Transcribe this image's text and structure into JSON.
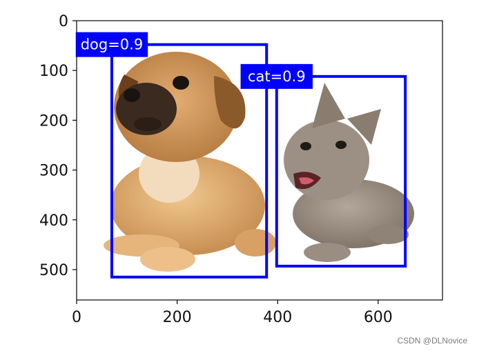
{
  "chart_data": {
    "type": "image-with-bounding-boxes",
    "xlim": [
      0,
      728
    ],
    "ylim": [
      561,
      0
    ],
    "xticks": [
      0,
      200,
      400,
      600
    ],
    "yticks": [
      0,
      100,
      200,
      300,
      400,
      500
    ],
    "grid": false,
    "boxes": [
      {
        "label": "dog=0.9",
        "bbox_data": [
          70,
          48,
          378,
          515
        ],
        "color": "#0000ff"
      },
      {
        "label": "cat=0.9",
        "bbox_data": [
          398,
          112,
          654,
          493
        ],
        "color": "#0000ff"
      }
    ],
    "image_subjects": [
      "dog",
      "cat"
    ]
  },
  "watermark": "CSDN @DLNovice",
  "colors": {
    "box": "#0000ff",
    "label_bg": "#0000ff",
    "label_text": "#ffffff",
    "axis": "#000000"
  }
}
